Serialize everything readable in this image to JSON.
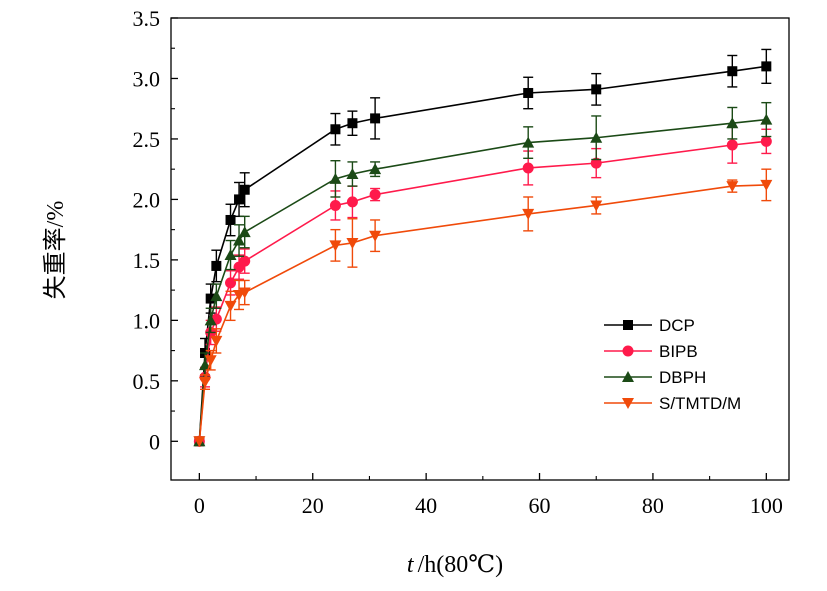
{
  "chart_data": {
    "type": "line",
    "xlabel": "t /h(80℃)",
    "xlabel_italic": "t",
    "xlabel_rest": "/h(80℃)",
    "ylabel": "失重率/%",
    "xlim": [
      -5,
      104
    ],
    "ylim": [
      -0.32,
      3.5
    ],
    "xticks": [
      0,
      20,
      40,
      60,
      80,
      100
    ],
    "xtick_labels": [
      "0",
      "20",
      "40",
      "60",
      "80",
      "100"
    ],
    "yticks": [
      0,
      0.5,
      1.0,
      1.5,
      2.0,
      2.5,
      3.0,
      3.5
    ],
    "ytick_labels": [
      "0",
      "0.5",
      "1.0",
      "1.5",
      "2.0",
      "2.5",
      "3.0",
      "3.5"
    ],
    "legend_position": "lower-right",
    "grid": false,
    "x": [
      0,
      1,
      2,
      3,
      5.5,
      7,
      8,
      24,
      27,
      31,
      58,
      70,
      94,
      100
    ],
    "series": [
      {
        "name": "DCP",
        "marker": "square",
        "color": "#000000",
        "values": [
          0,
          0.73,
          1.18,
          1.45,
          1.83,
          2.0,
          2.08,
          2.58,
          2.63,
          2.67,
          2.88,
          2.91,
          3.06,
          3.1
        ],
        "errors": [
          0,
          0.12,
          0.12,
          0.13,
          0.13,
          0.14,
          0.14,
          0.13,
          0.1,
          0.17,
          0.13,
          0.13,
          0.13,
          0.14
        ]
      },
      {
        "name": "BIPB",
        "marker": "circle",
        "color": "#ff1a4b",
        "values": [
          0,
          0.53,
          0.9,
          1.01,
          1.31,
          1.44,
          1.49,
          1.95,
          1.98,
          2.04,
          2.26,
          2.3,
          2.45,
          2.48
        ],
        "errors": [
          0,
          0.08,
          0.1,
          0.1,
          0.1,
          0.1,
          0.1,
          0.12,
          0.13,
          0.05,
          0.14,
          0.12,
          0.15,
          0.1
        ]
      },
      {
        "name": "DBPH",
        "marker": "triangle-up",
        "color": "#1b4a16",
        "values": [
          0,
          0.63,
          1.0,
          1.2,
          1.54,
          1.66,
          1.73,
          2.17,
          2.21,
          2.25,
          2.47,
          2.51,
          2.63,
          2.66
        ],
        "errors": [
          0,
          0.1,
          0.1,
          0.1,
          0.12,
          0.13,
          0.13,
          0.15,
          0.1,
          0.06,
          0.13,
          0.18,
          0.13,
          0.14
        ]
      },
      {
        "name": "S/TMTD/M",
        "marker": "triangle-down",
        "color": "#f04a0a",
        "values": [
          0,
          0.49,
          0.67,
          0.83,
          1.12,
          1.21,
          1.23,
          1.62,
          1.64,
          1.7,
          1.88,
          1.95,
          2.11,
          2.12
        ],
        "errors": [
          0,
          0.06,
          0.08,
          0.1,
          0.12,
          0.12,
          0.1,
          0.13,
          0.2,
          0.13,
          0.14,
          0.07,
          0.05,
          0.13
        ]
      }
    ]
  }
}
